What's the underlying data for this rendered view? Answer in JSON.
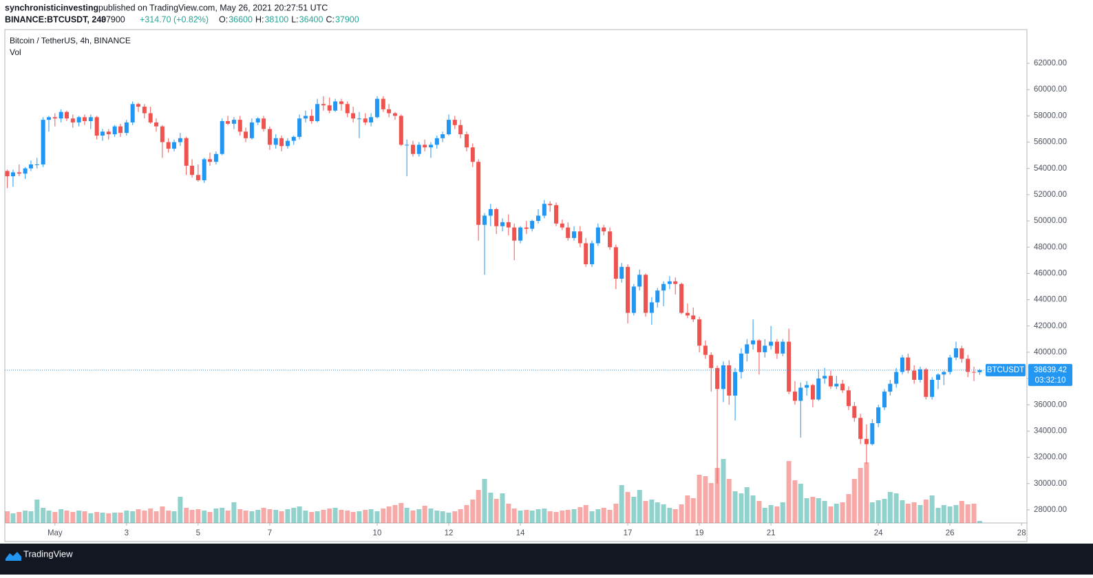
{
  "header": {
    "author": "synchronisticinvesting",
    "published": "published on TradingView.com, May 26, 2021 20:27:51 UTC",
    "symbol": "BINANCE:BTCUSDT, 240",
    "change": "+314.70 (+0.82%)",
    "ohlc_labels": [
      "O:",
      "H:",
      "L:",
      "C:"
    ]
  },
  "chart_data": {
    "type": "candlestick",
    "title": "Bitcoin / TetherUS, 4h, BINANCE",
    "volume_title": "Vol",
    "symbol_tag": "BTCUSDT",
    "countdown": "03:32:10",
    "up_color": "#2196f3",
    "down_color": "#ef5350",
    "volume_up_color": "#26a69a",
    "volume_down_color": "#ef5350",
    "last_price_color": "#2196f3",
    "xlim": [
      -0.4,
      28.15
    ],
    "ylim": [
      27000,
      64570
    ],
    "xticks": [
      {
        "value": 1,
        "label": "May"
      },
      3,
      5,
      7,
      10,
      12,
      14,
      17,
      19,
      21,
      24,
      26,
      28
    ],
    "yticks": [
      {
        "value": 28000,
        "label": "28000.00"
      },
      {
        "value": 30000,
        "label": "30000.00"
      },
      {
        "value": 32000,
        "label": "32000.00"
      },
      {
        "value": 34000,
        "label": "34000.00"
      },
      {
        "value": 36000,
        "label": "36000.00"
      },
      {
        "value": 38000,
        "label": "38000.00"
      },
      {
        "value": 40000,
        "label": "40000.00"
      },
      {
        "value": 42000,
        "label": "42000.00"
      },
      {
        "value": 44000,
        "label": "44000.00"
      },
      {
        "value": 46000,
        "label": "46000.00"
      },
      {
        "value": 48000,
        "label": "48000.00"
      },
      {
        "value": 50000,
        "label": "50000.00"
      },
      {
        "value": 52000,
        "label": "52000.00"
      },
      {
        "value": 54000,
        "label": "54000.00"
      },
      {
        "value": 56000,
        "label": "56000.00"
      },
      {
        "value": 58000,
        "label": "58000.00"
      },
      {
        "value": 60000,
        "label": "60000.00"
      },
      {
        "value": 62000,
        "label": "62000.00"
      }
    ],
    "x": [
      -0.33,
      -0.17,
      0,
      0.17,
      0.33,
      0.5,
      0.67,
      0.83,
      1,
      1.17,
      1.33,
      1.5,
      1.67,
      1.83,
      2,
      2.17,
      2.33,
      2.5,
      2.67,
      2.83,
      3,
      3.17,
      3.33,
      3.5,
      3.67,
      3.83,
      4,
      4.17,
      4.33,
      4.5,
      4.67,
      4.83,
      5,
      5.17,
      5.33,
      5.5,
      5.67,
      5.83,
      6,
      6.17,
      6.33,
      6.5,
      6.67,
      6.83,
      7,
      7.17,
      7.33,
      7.5,
      7.67,
      7.83,
      8,
      8.17,
      8.33,
      8.5,
      8.67,
      8.83,
      9,
      9.17,
      9.33,
      9.5,
      9.67,
      9.83,
      10,
      10.17,
      10.33,
      10.5,
      10.67,
      10.83,
      11,
      11.17,
      11.33,
      11.5,
      11.67,
      11.83,
      12,
      12.17,
      12.33,
      12.5,
      12.67,
      12.83,
      13,
      13.17,
      13.33,
      13.5,
      13.67,
      13.83,
      14,
      14.17,
      14.33,
      14.5,
      14.67,
      14.83,
      15,
      15.17,
      15.33,
      15.5,
      15.67,
      15.83,
      16,
      16.17,
      16.33,
      16.5,
      16.67,
      16.83,
      17,
      17.17,
      17.33,
      17.5,
      17.67,
      17.83,
      18,
      18.17,
      18.33,
      18.5,
      18.67,
      18.83,
      19,
      19.17,
      19.33,
      19.5,
      19.67,
      19.83,
      20,
      20.17,
      20.33,
      20.5,
      20.67,
      20.83,
      21,
      21.17,
      21.33,
      21.5,
      21.67,
      21.83,
      22,
      22.17,
      22.33,
      22.5,
      22.67,
      22.83,
      23,
      23.17,
      23.33,
      23.5,
      23.67,
      23.83,
      24,
      24.17,
      24.33,
      24.5,
      24.67,
      24.83,
      25,
      25.17,
      25.33,
      25.5,
      25.67,
      25.83,
      26,
      26.17,
      26.33,
      26.5,
      26.67,
      26.83
    ],
    "ohlc": [
      [
        53800,
        53900,
        52500,
        53400
      ],
      [
        53400,
        53900,
        52600,
        53700
      ],
      [
        53700,
        54300,
        53400,
        53600
      ],
      [
        53600,
        54100,
        53200,
        54000
      ],
      [
        54000,
        54600,
        53800,
        54300
      ],
      [
        54300,
        54800,
        54000,
        54300
      ],
      [
        54300,
        57900,
        54100,
        57700
      ],
      [
        57700,
        58000,
        56800,
        57900
      ],
      [
        57900,
        58200,
        57200,
        57800
      ],
      [
        57800,
        58500,
        57500,
        58300
      ],
      [
        58300,
        58400,
        57600,
        57800
      ],
      [
        57800,
        58100,
        57100,
        57500
      ],
      [
        57500,
        58000,
        57200,
        57900
      ],
      [
        57900,
        58100,
        57300,
        57600
      ],
      [
        57600,
        58100,
        57000,
        57900
      ],
      [
        57900,
        58000,
        56200,
        56500
      ],
      [
        56500,
        57000,
        56100,
        56800
      ],
      [
        56800,
        57000,
        56200,
        56600
      ],
      [
        56600,
        57300,
        56400,
        57200
      ],
      [
        57200,
        57400,
        56400,
        56700
      ],
      [
        56700,
        57700,
        56500,
        57500
      ],
      [
        57500,
        59100,
        57300,
        58900
      ],
      [
        58900,
        59000,
        58300,
        58700
      ],
      [
        58700,
        58900,
        57800,
        58200
      ],
      [
        58200,
        58700,
        57400,
        57500
      ],
      [
        57500,
        57800,
        56800,
        57200
      ],
      [
        57200,
        57300,
        54800,
        56000
      ],
      [
        56000,
        56300,
        55200,
        55500
      ],
      [
        55500,
        56200,
        55300,
        56000
      ],
      [
        56000,
        56700,
        55700,
        56300
      ],
      [
        56300,
        56400,
        53500,
        54200
      ],
      [
        54200,
        54700,
        53300,
        53500
      ],
      [
        53500,
        54300,
        53000,
        53100
      ],
      [
        53100,
        54800,
        52900,
        54700
      ],
      [
        54700,
        55200,
        54200,
        54500
      ],
      [
        54500,
        55300,
        54300,
        55100
      ],
      [
        55100,
        57800,
        55000,
        57600
      ],
      [
        57600,
        58000,
        57300,
        57400
      ],
      [
        57400,
        57900,
        57000,
        57700
      ],
      [
        57700,
        58000,
        56500,
        56800
      ],
      [
        56800,
        57100,
        56000,
        56300
      ],
      [
        56300,
        57800,
        56200,
        57500
      ],
      [
        57500,
        57900,
        57300,
        57800
      ],
      [
        57800,
        58000,
        56800,
        57000
      ],
      [
        57000,
        57200,
        55400,
        55800
      ],
      [
        55800,
        56600,
        55500,
        56300
      ],
      [
        56300,
        56500,
        55300,
        55700
      ],
      [
        55700,
        56300,
        55500,
        56100
      ],
      [
        56100,
        56500,
        55800,
        56400
      ],
      [
        56400,
        58100,
        56200,
        57800
      ],
      [
        57800,
        58400,
        57500,
        58000
      ],
      [
        58000,
        58500,
        57400,
        57600
      ],
      [
        57600,
        59300,
        57500,
        58900
      ],
      [
        58900,
        59500,
        58400,
        58800
      ],
      [
        58800,
        59400,
        58200,
        58400
      ],
      [
        58400,
        59300,
        58300,
        59100
      ],
      [
        59100,
        59300,
        58400,
        58900
      ],
      [
        58900,
        59100,
        57900,
        58200
      ],
      [
        58200,
        58700,
        57500,
        57800
      ],
      [
        57800,
        58300,
        56300,
        57800
      ],
      [
        57800,
        58200,
        57300,
        57500
      ],
      [
        57500,
        58200,
        57200,
        57900
      ],
      [
        57900,
        59500,
        57800,
        59300
      ],
      [
        59300,
        59500,
        58300,
        58500
      ],
      [
        58500,
        58900,
        57900,
        58200
      ],
      [
        58200,
        58300,
        57700,
        58000
      ],
      [
        58000,
        58100,
        55700,
        55800
      ],
      [
        55800,
        56200,
        53400,
        55800
      ],
      [
        55800,
        56100,
        54900,
        55100
      ],
      [
        55100,
        56000,
        54900,
        55800
      ],
      [
        55800,
        56200,
        55300,
        55600
      ],
      [
        55600,
        56000,
        54800,
        55800
      ],
      [
        55800,
        56500,
        55500,
        56300
      ],
      [
        56300,
        56800,
        56000,
        56600
      ],
      [
        56600,
        58100,
        56500,
        57700
      ],
      [
        57700,
        58000,
        57000,
        57300
      ],
      [
        57300,
        57700,
        56300,
        56600
      ],
      [
        56600,
        56800,
        55300,
        55600
      ],
      [
        55600,
        55900,
        54100,
        54500
      ],
      [
        54500,
        54700,
        48500,
        49700
      ],
      [
        49700,
        50600,
        45900,
        50400
      ],
      [
        50400,
        51300,
        49600,
        50900
      ],
      [
        50900,
        51000,
        49000,
        49600
      ],
      [
        49600,
        50200,
        49200,
        49900
      ],
      [
        49900,
        50500,
        48900,
        49500
      ],
      [
        49500,
        49800,
        47000,
        48500
      ],
      [
        48500,
        49600,
        48300,
        49500
      ],
      [
        49500,
        50000,
        49000,
        49400
      ],
      [
        49400,
        50100,
        49200,
        50000
      ],
      [
        50000,
        50900,
        49800,
        50400
      ],
      [
        50400,
        51600,
        50200,
        51300
      ],
      [
        51300,
        51500,
        50700,
        51200
      ],
      [
        51200,
        51400,
        49600,
        49800
      ],
      [
        49800,
        50100,
        49300,
        49500
      ],
      [
        49500,
        49900,
        48500,
        48700
      ],
      [
        48700,
        49600,
        48500,
        49200
      ],
      [
        49200,
        49600,
        48000,
        48300
      ],
      [
        48300,
        48700,
        46500,
        46700
      ],
      [
        46700,
        48500,
        46500,
        48300
      ],
      [
        48300,
        49800,
        48100,
        49500
      ],
      [
        49500,
        49700,
        48900,
        49200
      ],
      [
        49200,
        49500,
        47800,
        48000
      ],
      [
        48000,
        48200,
        44800,
        45600
      ],
      [
        45600,
        46800,
        45300,
        46500
      ],
      [
        46500,
        46700,
        42200,
        43000
      ],
      [
        43000,
        45200,
        42800,
        45000
      ],
      [
        45000,
        46300,
        44700,
        45900
      ],
      [
        45900,
        46000,
        42700,
        43000
      ],
      [
        43000,
        44200,
        42100,
        43800
      ],
      [
        43800,
        44900,
        43400,
        44700
      ],
      [
        44700,
        45400,
        43500,
        45200
      ],
      [
        45200,
        45800,
        44800,
        45400
      ],
      [
        45400,
        45700,
        44400,
        45200
      ],
      [
        45200,
        45300,
        42900,
        43000
      ],
      [
        43000,
        43700,
        42600,
        42800
      ],
      [
        42800,
        43400,
        42300,
        42500
      ],
      [
        42500,
        42700,
        40000,
        40500
      ],
      [
        40500,
        40900,
        39500,
        39800
      ],
      [
        39800,
        40000,
        37000,
        38800
      ],
      [
        38800,
        39000,
        30000,
        37200
      ],
      [
        37200,
        39300,
        36200,
        39000
      ],
      [
        39000,
        39400,
        36000,
        36700
      ],
      [
        36700,
        38800,
        34800,
        38500
      ],
      [
        38500,
        40300,
        38000,
        39900
      ],
      [
        39900,
        41000,
        39300,
        40600
      ],
      [
        40600,
        42500,
        40200,
        40900
      ],
      [
        40900,
        41000,
        38300,
        40000
      ],
      [
        40000,
        41000,
        39600,
        40500
      ],
      [
        40500,
        42000,
        40200,
        40800
      ],
      [
        40800,
        41000,
        39500,
        39900
      ],
      [
        39900,
        41000,
        39700,
        40800
      ],
      [
        40800,
        41800,
        36800,
        37000
      ],
      [
        37000,
        37800,
        36000,
        36300
      ],
      [
        36300,
        37700,
        33500,
        37300
      ],
      [
        37300,
        37800,
        36700,
        37500
      ],
      [
        37500,
        37600,
        35800,
        36400
      ],
      [
        36400,
        38700,
        36300,
        38000
      ],
      [
        38000,
        38800,
        37600,
        38200
      ],
      [
        38200,
        38600,
        37200,
        37400
      ],
      [
        37400,
        38200,
        37200,
        37600
      ],
      [
        37600,
        37900,
        36900,
        37100
      ],
      [
        37100,
        37400,
        35600,
        35900
      ],
      [
        35900,
        36200,
        34700,
        35000
      ],
      [
        35000,
        35300,
        33000,
        33400
      ],
      [
        33400,
        34500,
        31500,
        33000
      ],
      [
        33000,
        34900,
        32900,
        34600
      ],
      [
        34600,
        36000,
        34300,
        35800
      ],
      [
        35800,
        37200,
        35600,
        37000
      ],
      [
        37000,
        37900,
        36700,
        37600
      ],
      [
        37600,
        38800,
        37300,
        38500
      ],
      [
        38500,
        39800,
        38300,
        39600
      ],
      [
        39600,
        39900,
        38400,
        38600
      ],
      [
        38600,
        39000,
        37600,
        37900
      ],
      [
        37900,
        38900,
        37700,
        38700
      ],
      [
        38700,
        38800,
        36400,
        36600
      ],
      [
        36600,
        38100,
        36400,
        37900
      ],
      [
        37900,
        38400,
        37200,
        38300
      ],
      [
        38300,
        38600,
        37500,
        38500
      ],
      [
        38500,
        39800,
        38300,
        39600
      ],
      [
        39600,
        40800,
        39400,
        40300
      ],
      [
        40300,
        40500,
        39200,
        39500
      ],
      [
        39500,
        39800,
        38100,
        38500
      ],
      [
        38500,
        38900,
        37800,
        38480
      ],
      [
        38476.74,
        38737.99,
        38280.19,
        38639.42
      ]
    ],
    "volume": [
      17,
      14,
      16,
      18,
      17,
      34,
      22,
      18,
      16,
      20,
      18,
      16,
      18,
      17,
      14,
      16,
      15,
      14,
      15,
      15,
      18,
      17,
      20,
      18,
      21,
      17,
      24,
      18,
      17,
      38,
      22,
      19,
      20,
      18,
      16,
      21,
      22,
      18,
      30,
      20,
      18,
      17,
      19,
      22,
      20,
      19,
      17,
      20,
      22,
      24,
      18,
      16,
      17,
      19,
      21,
      22,
      19,
      18,
      16,
      17,
      19,
      20,
      17,
      21,
      24,
      26,
      29,
      22,
      18,
      20,
      25,
      21,
      18,
      17,
      15,
      17,
      20,
      26,
      34,
      48,
      64,
      44,
      35,
      43,
      28,
      21,
      18,
      19,
      18,
      20,
      21,
      17,
      16,
      18,
      19,
      20,
      23,
      26,
      17,
      20,
      22,
      19,
      28,
      55,
      45,
      38,
      48,
      32,
      34,
      30,
      27,
      22,
      20,
      27,
      40,
      36,
      70,
      68,
      58,
      80,
      93,
      64,
      46,
      43,
      52,
      40,
      32,
      22,
      26,
      24,
      30,
      90,
      62,
      57,
      36,
      38,
      36,
      32,
      24,
      28,
      30,
      42,
      64,
      80,
      88,
      30,
      33,
      35,
      45,
      43,
      33,
      28,
      30,
      26,
      34,
      40,
      22,
      26,
      24,
      26,
      32,
      27,
      28,
      3
    ]
  },
  "footer": {
    "brand": "TradingView"
  }
}
